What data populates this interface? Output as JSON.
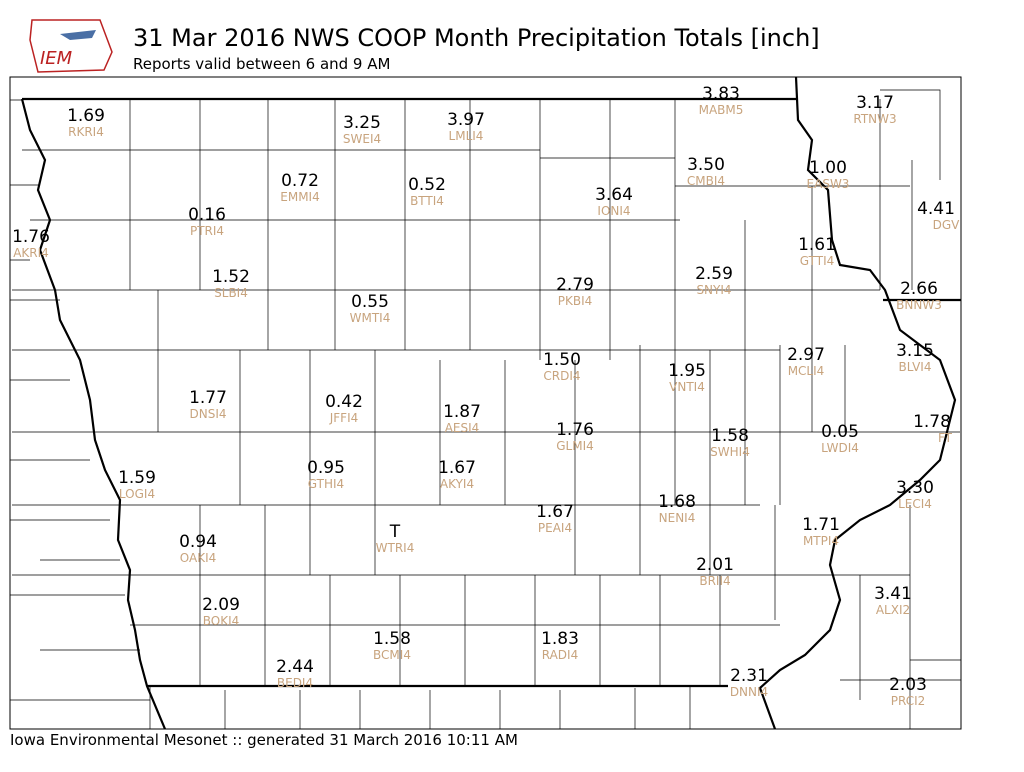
{
  "header": {
    "title": "31 Mar 2016 NWS COOP Month Precipitation Totals [inch]",
    "subtitle": "Reports valid between 6 and 9 AM",
    "logo": "IEM"
  },
  "stations": [
    {
      "value": "1.69",
      "id": "RKRI4"
    },
    {
      "value": "3.25",
      "id": "SWEI4"
    },
    {
      "value": "3.97",
      "id": "LMLI4"
    },
    {
      "value": "3.83",
      "id": "MABM5"
    },
    {
      "value": "3.17",
      "id": "RTNW3"
    },
    {
      "value": "3.50",
      "id": "CMBI4"
    },
    {
      "value": "1.00",
      "id": "EASW3"
    },
    {
      "value": "0.72",
      "id": "EMMI4"
    },
    {
      "value": "0.52",
      "id": "BTTI4"
    },
    {
      "value": "3.64",
      "id": "IONI4"
    },
    {
      "value": "0.16",
      "id": "PTRI4"
    },
    {
      "value": "4.41",
      "id": "DGV"
    },
    {
      "value": "1.76",
      "id": "AKRI4"
    },
    {
      "value": "1.61",
      "id": "GTTI4"
    },
    {
      "value": "1.52",
      "id": "SLBI4"
    },
    {
      "value": "2.79",
      "id": "PKBI4"
    },
    {
      "value": "2.59",
      "id": "SNYI4"
    },
    {
      "value": "2.66",
      "id": "BNNW3"
    },
    {
      "value": "0.55",
      "id": "WMTI4"
    },
    {
      "value": "1.50",
      "id": "CRDI4"
    },
    {
      "value": "1.95",
      "id": "VNTI4"
    },
    {
      "value": "2.97",
      "id": "MCLI4"
    },
    {
      "value": "3.15",
      "id": "BLVI4"
    },
    {
      "value": "1.77",
      "id": "DNSI4"
    },
    {
      "value": "0.42",
      "id": "JFFI4"
    },
    {
      "value": "1.87",
      "id": "AESI4"
    },
    {
      "value": "1.76",
      "id": "GLMI4"
    },
    {
      "value": "1.58",
      "id": "SWHI4"
    },
    {
      "value": "0.05",
      "id": "LWDI4"
    },
    {
      "value": "1.78",
      "id": "FT"
    },
    {
      "value": "0.95",
      "id": "GTHI4"
    },
    {
      "value": "1.67",
      "id": "AKYI4"
    },
    {
      "value": "1.59",
      "id": "LOGI4"
    },
    {
      "value": "3.30",
      "id": "LECI4"
    },
    {
      "value": "1.68",
      "id": "NENI4"
    },
    {
      "value": "1.67",
      "id": "PEAI4"
    },
    {
      "value": "1.71",
      "id": "MTPI4"
    },
    {
      "value": "T",
      "id": "WTRI4"
    },
    {
      "value": "0.94",
      "id": "OAKI4"
    },
    {
      "value": "2.01",
      "id": "BRII4"
    },
    {
      "value": "3.41",
      "id": "ALXI2"
    },
    {
      "value": "2.09",
      "id": "BOKI4"
    },
    {
      "value": "1.58",
      "id": "BCMI4"
    },
    {
      "value": "1.83",
      "id": "RADI4"
    },
    {
      "value": "2.44",
      "id": "BEDI4"
    },
    {
      "value": "2.31",
      "id": "DNNI4"
    },
    {
      "value": "2.03",
      "id": "PRCI2"
    }
  ],
  "footer": "Iowa Environmental Mesonet :: generated 31 March 2016 10:11 AM"
}
